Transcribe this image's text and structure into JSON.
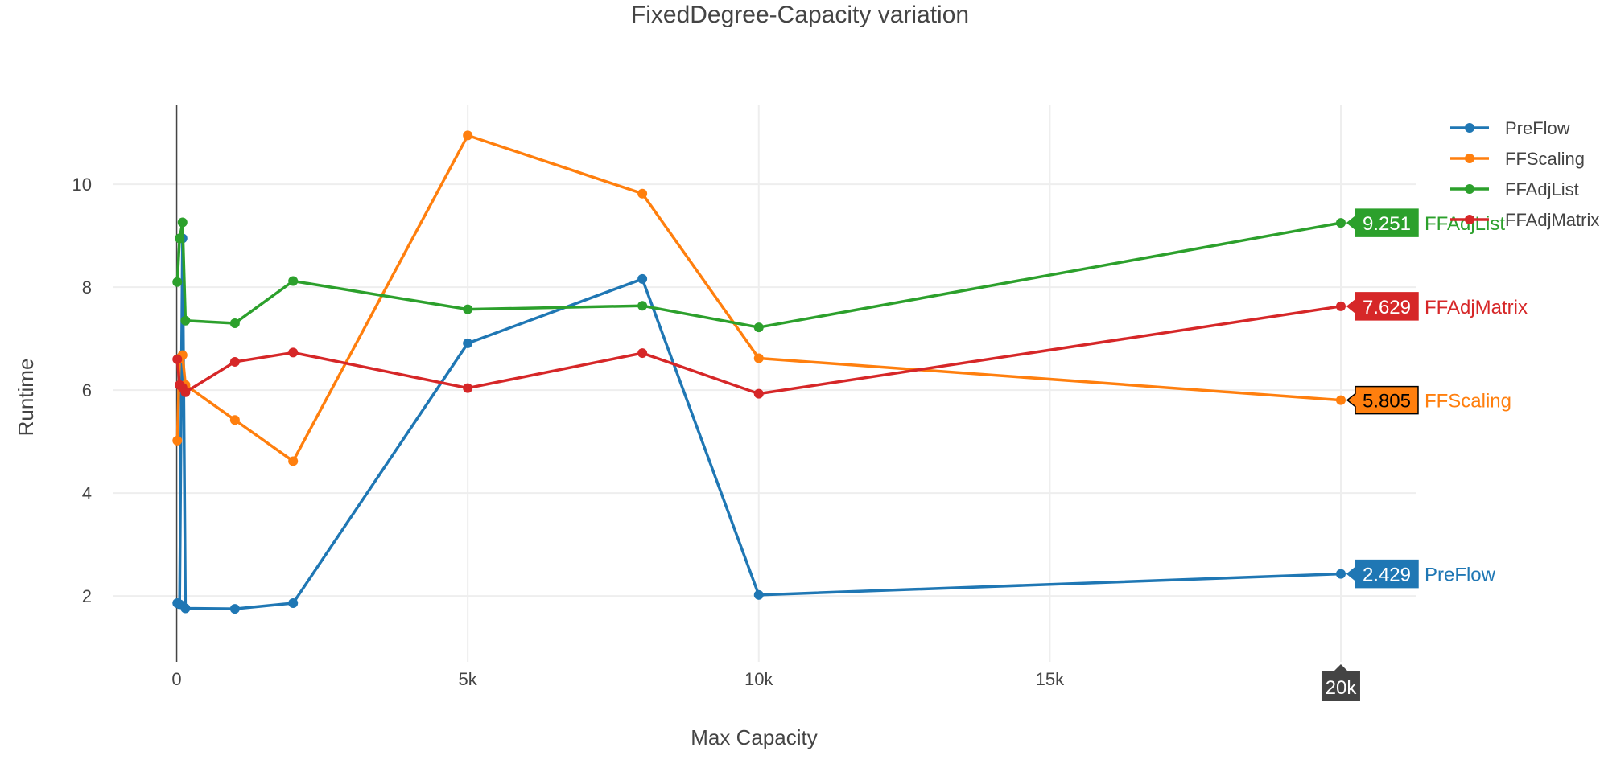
{
  "chart_data": {
    "type": "line",
    "title": "FixedDegree-Capacity variation",
    "xlabel": "Max Capacity",
    "ylabel": "Runtime",
    "xlim": [
      -1100,
      21300
    ],
    "ylim": [
      0.72,
      11.55
    ],
    "x_ticks": [
      {
        "value": 0,
        "label": "0"
      },
      {
        "value": 5000,
        "label": "5k"
      },
      {
        "value": 10000,
        "label": "10k"
      },
      {
        "value": 15000,
        "label": "15k"
      }
    ],
    "y_ticks": [
      {
        "value": 2,
        "label": "2"
      },
      {
        "value": 4,
        "label": "4"
      },
      {
        "value": 6,
        "label": "6"
      },
      {
        "value": 8,
        "label": "8"
      },
      {
        "value": 10,
        "label": "10"
      }
    ],
    "grid": true,
    "legend_position": "top-right",
    "hover_x_label": "20k",
    "series": [
      {
        "name": "PreFlow",
        "color": "#1f77b4",
        "x": [
          10,
          50,
          100,
          150,
          1000,
          2000,
          5000,
          8000,
          10000,
          20000
        ],
        "y": [
          1.86,
          1.84,
          8.95,
          1.76,
          1.75,
          1.86,
          6.91,
          8.16,
          2.02,
          2.429
        ],
        "hover_value": "2.429"
      },
      {
        "name": "FFScaling",
        "color": "#ff7f0e",
        "x": [
          10,
          50,
          100,
          150,
          1000,
          2000,
          5000,
          8000,
          10000,
          20000
        ],
        "y": [
          5.02,
          6.62,
          6.68,
          6.1,
          5.42,
          4.62,
          10.95,
          9.82,
          6.62,
          5.805
        ],
        "hover_value": "5.805"
      },
      {
        "name": "FFAdjList",
        "color": "#2ca02c",
        "x": [
          10,
          50,
          100,
          150,
          1000,
          2000,
          5000,
          8000,
          10000,
          20000
        ],
        "y": [
          8.1,
          8.95,
          9.26,
          7.35,
          7.3,
          8.12,
          7.57,
          7.64,
          7.22,
          9.251
        ],
        "hover_value": "9.251"
      },
      {
        "name": "FFAdjMatrix",
        "color": "#d62728",
        "x": [
          10,
          50,
          100,
          150,
          1000,
          2000,
          5000,
          8000,
          10000,
          20000
        ],
        "y": [
          6.6,
          6.1,
          6.05,
          5.96,
          6.55,
          6.73,
          6.04,
          6.72,
          5.93,
          7.629
        ],
        "hover_value": "7.629"
      }
    ]
  }
}
